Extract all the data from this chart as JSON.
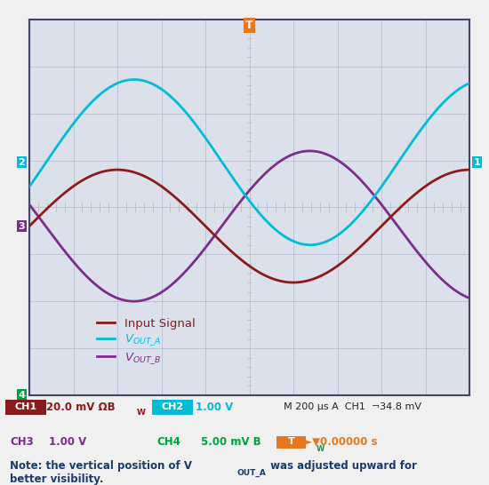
{
  "bg_color": "#e8eaf0",
  "grid_color": "#b0b8cc",
  "plot_bg": "#dce0ea",
  "border_color": "#555577",
  "oscilloscope_border": "#444466",
  "num_hdiv": 10,
  "num_vdiv": 8,
  "xmin": 0,
  "xmax": 10,
  "ymin": -5,
  "ymax": 5,
  "input_color": "#8b1a1a",
  "vout_a_color": "#00bcd4",
  "vout_b_color": "#7b2d8b",
  "input_amplitude": 1.5,
  "input_freq": 1.25,
  "input_phase": 0.0,
  "vout_a_amplitude": 2.2,
  "vout_a_freq": 1.25,
  "vout_a_phase": -0.3,
  "vout_b_amplitude": 2.0,
  "vout_b_freq": 1.25,
  "vout_b_phase": 2.85,
  "label_input": "Input Signal",
  "label_vout_a": "V",
  "label_vout_a_sub": "OUT_A",
  "label_vout_b": "V",
  "label_vout_b_sub": "OUT_B",
  "ch1_label": "CH1",
  "ch1_text": " 20.0 mV ΩB",
  "ch1_text2": "W",
  "ch2_label": "CH2",
  "ch2_text": " 1.00 V",
  "ch3_text": "CH3  1.00 V",
  "ch4_text": "CH4  5.00 mV B",
  "ch4_text2": "W",
  "m_text": "M 200 µs A  CH1  ¬34.8 mV",
  "t_text": "T►▼0.00000 s",
  "note_text": "Note: the vertical position of V",
  "note_sub": "OUT_A",
  "note_text2": " was adjusted upward for\nbetter visibility.",
  "trigger_x": 0.5,
  "ch2_label_color": "#00bcd4",
  "ch3_label_color": "#7b2d8b",
  "ch4_label_color": "#00a040",
  "marker2_y": 0.25,
  "marker3_y": 0.0,
  "marker4_y": -2.5,
  "right_label_color": "#00bcd4",
  "right_text": "1",
  "sidebar_2_color": "#00bcd4",
  "sidebar_3_color": "#7b2d8b",
  "sidebar_4_color": "#00a040"
}
